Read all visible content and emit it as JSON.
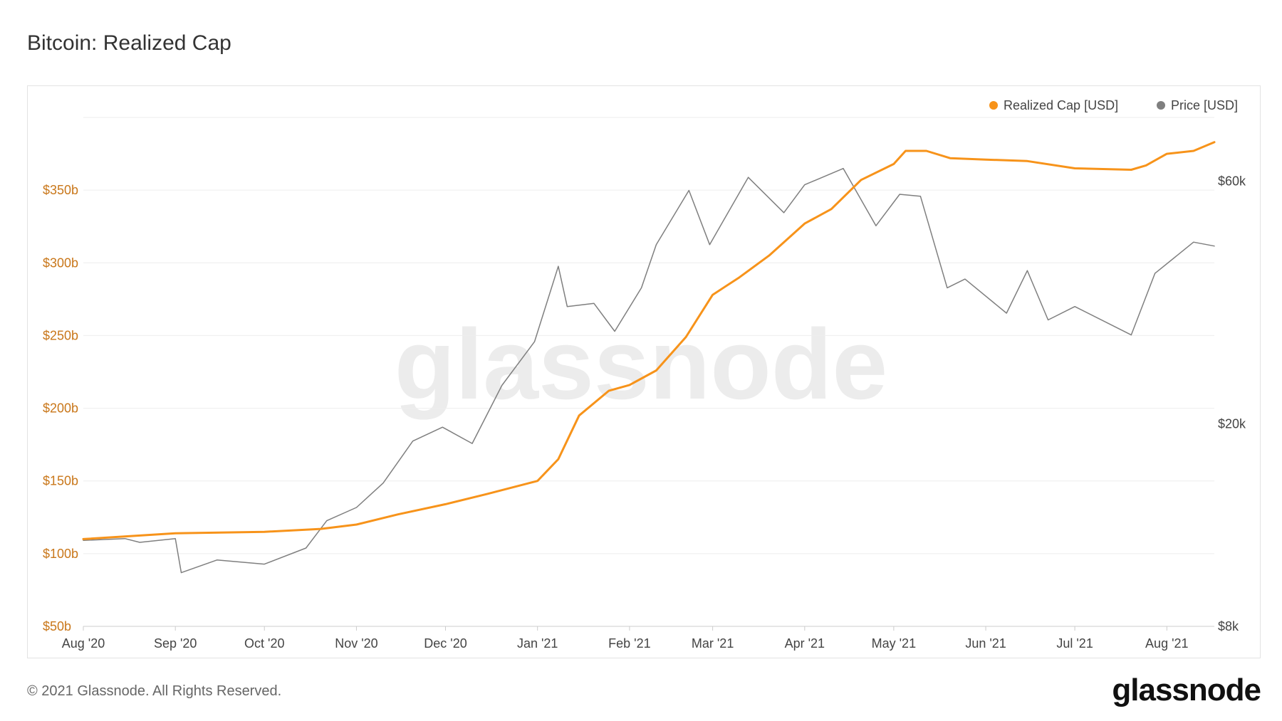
{
  "title": "Bitcoin: Realized Cap",
  "footer": {
    "copyright": "© 2021 Glassnode. All Rights Reserved.",
    "brand": "glassnode"
  },
  "watermark": "glassnode",
  "colors": {
    "realized": "#f7931a",
    "price": "#7f7f7f",
    "grid": "#eeeeee",
    "left_axis": "#c9771a"
  },
  "chart_data": {
    "type": "line",
    "title": "Bitcoin: Realized Cap",
    "legend_position": "top-right",
    "grid": true,
    "x": {
      "ticks": [
        "Aug '20",
        "Sep '20",
        "Oct '20",
        "Nov '20",
        "Dec '20",
        "Jan '21",
        "Feb '21",
        "Mar '21",
        "Apr '21",
        "May '21",
        "Jun '21",
        "Jul '21",
        "Aug '21"
      ],
      "range": [
        "2020-08-01",
        "2021-08-17"
      ]
    },
    "y_left": {
      "ticks": [
        "$50b",
        "$100b",
        "$150b",
        "$200b",
        "$250b",
        "$300b",
        "$350b"
      ],
      "range": [
        50,
        400
      ],
      "unit": "billion USD"
    },
    "y_right": {
      "ticks": [
        "$8k",
        "$20k",
        "$60k"
      ],
      "scale": "log",
      "range": [
        8000,
        80000
      ]
    },
    "series": [
      {
        "name": "Realized Cap [USD]",
        "axis": "left",
        "color": "#f7931a",
        "points": [
          [
            "2020-08-01",
            110
          ],
          [
            "2020-09-01",
            114
          ],
          [
            "2020-10-01",
            115
          ],
          [
            "2020-10-20",
            117
          ],
          [
            "2020-11-01",
            120
          ],
          [
            "2020-11-15",
            127
          ],
          [
            "2020-12-01",
            134
          ],
          [
            "2020-12-15",
            141
          ],
          [
            "2021-01-01",
            150
          ],
          [
            "2021-01-08",
            165
          ],
          [
            "2021-01-15",
            195
          ],
          [
            "2021-01-25",
            212
          ],
          [
            "2021-02-01",
            216
          ],
          [
            "2021-02-10",
            226
          ],
          [
            "2021-02-20",
            249
          ],
          [
            "2021-03-01",
            278
          ],
          [
            "2021-03-10",
            290
          ],
          [
            "2021-03-20",
            305
          ],
          [
            "2021-04-01",
            327
          ],
          [
            "2021-04-10",
            337
          ],
          [
            "2021-04-20",
            357
          ],
          [
            "2021-05-01",
            368
          ],
          [
            "2021-05-05",
            377
          ],
          [
            "2021-05-12",
            377
          ],
          [
            "2021-05-20",
            372
          ],
          [
            "2021-06-01",
            371
          ],
          [
            "2021-06-15",
            370
          ],
          [
            "2021-07-01",
            365
          ],
          [
            "2021-07-20",
            364
          ],
          [
            "2021-07-25",
            367
          ],
          [
            "2021-08-01",
            375
          ],
          [
            "2021-08-10",
            377
          ],
          [
            "2021-08-17",
            383
          ]
        ]
      },
      {
        "name": "Price [USD]",
        "axis": "right",
        "color": "#7f7f7f",
        "points": [
          [
            "2020-08-01",
            11800
          ],
          [
            "2020-08-15",
            11900
          ],
          [
            "2020-08-20",
            11700
          ],
          [
            "2020-09-01",
            11900
          ],
          [
            "2020-09-03",
            10200
          ],
          [
            "2020-09-15",
            10800
          ],
          [
            "2020-10-01",
            10600
          ],
          [
            "2020-10-15",
            11400
          ],
          [
            "2020-10-22",
            12900
          ],
          [
            "2020-11-01",
            13700
          ],
          [
            "2020-11-10",
            15300
          ],
          [
            "2020-11-20",
            18500
          ],
          [
            "2020-11-30",
            19700
          ],
          [
            "2020-12-10",
            18300
          ],
          [
            "2020-12-20",
            23800
          ],
          [
            "2020-12-31",
            29000
          ],
          [
            "2021-01-08",
            40800
          ],
          [
            "2021-01-11",
            34000
          ],
          [
            "2021-01-20",
            34500
          ],
          [
            "2021-01-27",
            30400
          ],
          [
            "2021-02-05",
            37000
          ],
          [
            "2021-02-10",
            45000
          ],
          [
            "2021-02-21",
            57500
          ],
          [
            "2021-02-28",
            45000
          ],
          [
            "2021-03-13",
            61000
          ],
          [
            "2021-03-25",
            52000
          ],
          [
            "2021-04-01",
            59000
          ],
          [
            "2021-04-14",
            63500
          ],
          [
            "2021-04-25",
            49000
          ],
          [
            "2021-05-03",
            56500
          ],
          [
            "2021-05-10",
            56000
          ],
          [
            "2021-05-19",
            37000
          ],
          [
            "2021-05-25",
            38500
          ],
          [
            "2021-06-08",
            33000
          ],
          [
            "2021-06-15",
            40000
          ],
          [
            "2021-06-22",
            32000
          ],
          [
            "2021-07-01",
            34000
          ],
          [
            "2021-07-20",
            29900
          ],
          [
            "2021-07-28",
            39500
          ],
          [
            "2021-08-10",
            45500
          ],
          [
            "2021-08-17",
            44700
          ]
        ]
      }
    ]
  }
}
